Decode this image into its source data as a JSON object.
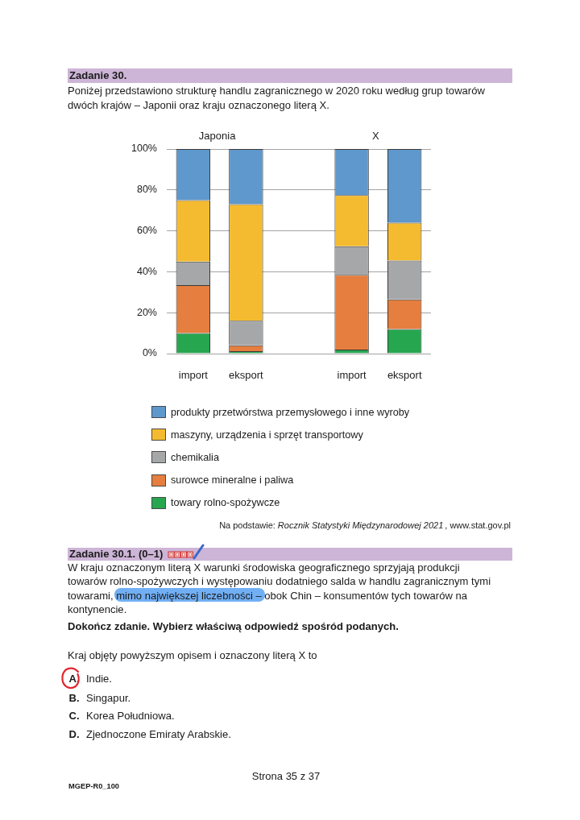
{
  "chart_data": {
    "type": "bar",
    "title": "Zadanie 30.",
    "subtitle": "Poniżej przedstawiono strukturę handlu zagranicznego w 2020 roku według grup towarów dwóch krajów – Japonii oraz kraju oznaczonego literą X.",
    "categories": [
      "import",
      "eksport",
      null,
      "import",
      "eksport"
    ],
    "stacked": true,
    "series": [
      {
        "name": "towary rolno-spożywcze",
        "color": "#27a650",
        "values": [
          10,
          1.2,
          null,
          2,
          12
        ]
      },
      {
        "name": "surowce mineralne i paliwa",
        "color": "#e57e3e",
        "values": [
          23.5,
          2.8,
          null,
          36.5,
          14.5
        ]
      },
      {
        "name": "chemikalia",
        "color": "#a6a7a9",
        "values": [
          11.5,
          12,
          null,
          14,
          19
        ]
      },
      {
        "name": "maszyny, urządzenia i sprzęt transportowy",
        "color": "#f5bb30",
        "values": [
          30,
          57,
          null,
          25,
          18.5
        ]
      },
      {
        "name": "produkty przetwórstwa przemysłowego i inne wyroby",
        "color": "#5e98cc",
        "values": [
          25,
          27,
          null,
          22.5,
          36
        ]
      }
    ],
    "ylim": [
      0,
      100
    ],
    "yticks": [
      {
        "value": 0,
        "label": "0%"
      },
      {
        "value": 20,
        "label": "20%"
      },
      {
        "value": 40,
        "label": "40%"
      },
      {
        "value": 60,
        "label": "60%"
      },
      {
        "value": 80,
        "label": "80%"
      },
      {
        "value": 100,
        "label": "100%"
      }
    ],
    "grid": "y",
    "legend": "bottom",
    "annotations": [
      "Japonia",
      "X",
      "Na podstawie:",
      "Rocznik Statystyki Międzynarodowej 2021",
      ", www.stat.gov.pl",
      "Zadanie 30.1. (0–1)",
      "W kraju oznaczonym literą X warunki środowiska geograficznego sprzyjają produkcji towarów rolno-spożywczych i występowaniu dodatniego salda w handlu zagranicznym tymi towarami, mimo największej liczebności – obok Chin – konsumentów tych towarów na kontynencie.",
      "Dokończ zdanie. Wybierz właściwą odpowiedź spośród podanych.",
      "Kraj objęty powyższym opisem i oznaczony literą X to",
      "A.",
      "Indie.",
      "B.",
      "Singapur.",
      "C.",
      "Korea Południowa.",
      "D.",
      "Zjednoczone Emiraty Arabskie.",
      "Strona 35 z 37",
      "MGEP-R0_100"
    ]
  }
}
